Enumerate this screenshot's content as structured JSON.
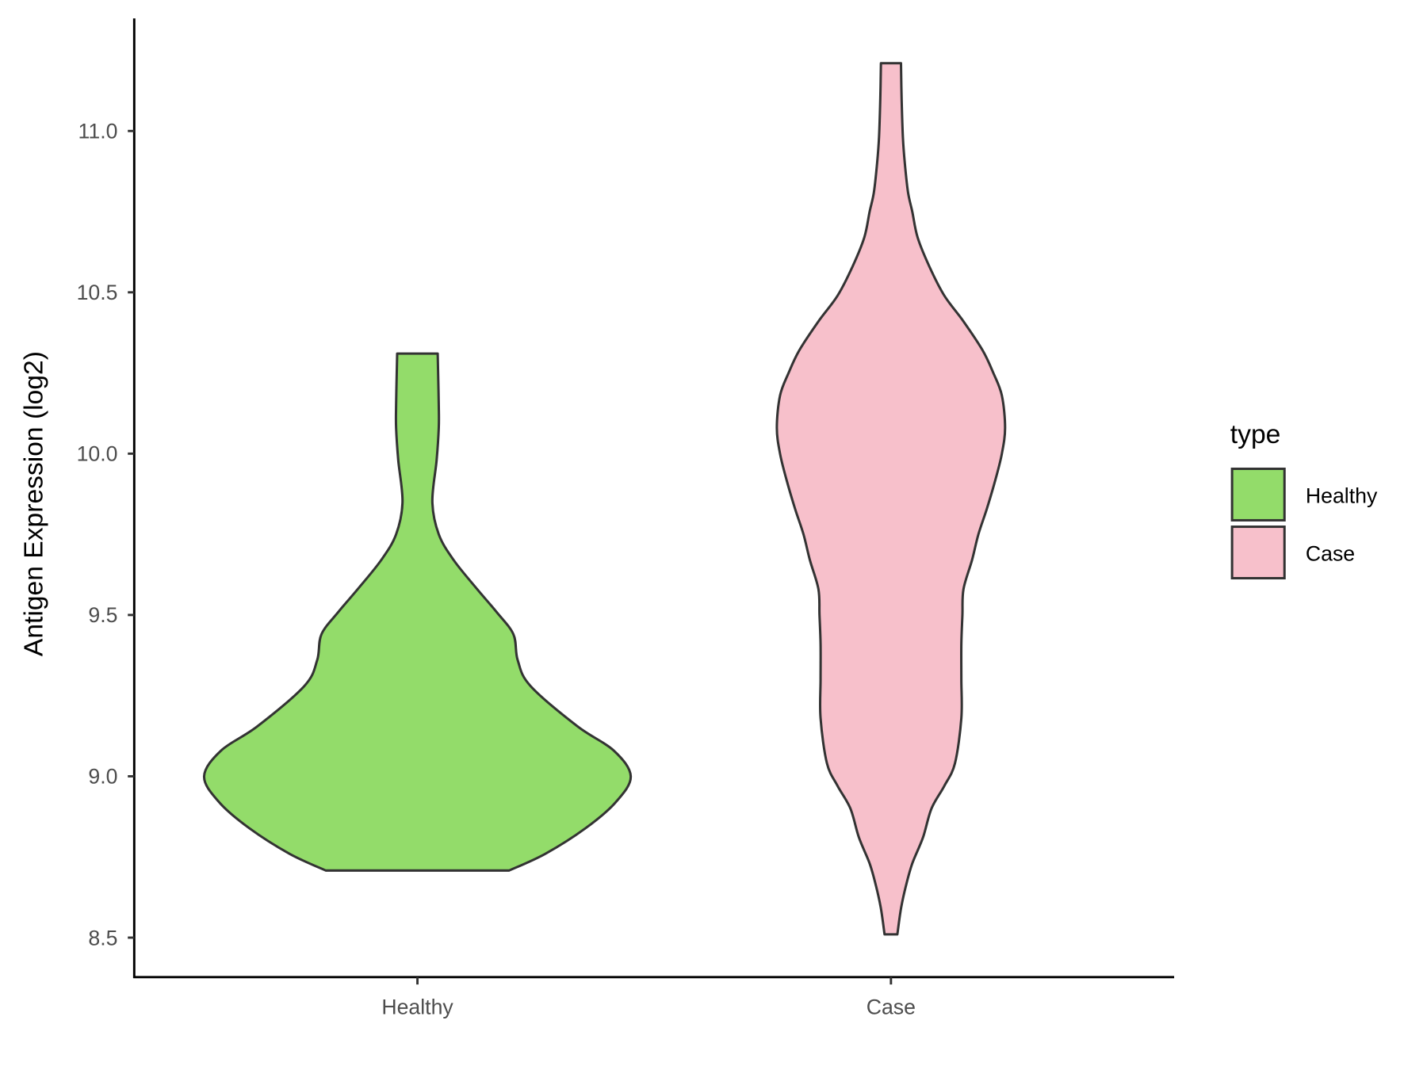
{
  "chart_data": {
    "type": "violin",
    "title": "",
    "xlabel": "",
    "ylabel": "Antigen Expression (log2)",
    "ylim": [
      8.38,
      11.35
    ],
    "yticks": [
      "8.5",
      "9.0",
      "9.5",
      "10.0",
      "10.5",
      "11.0"
    ],
    "ytick_values": [
      8.5,
      9.0,
      9.5,
      10.0,
      10.5,
      11.0
    ],
    "categories": [
      "Healthy",
      "Case"
    ],
    "grid": false,
    "legend": {
      "title": "type",
      "placement": "right",
      "entries": [
        "Healthy",
        "Case"
      ]
    },
    "series": [
      {
        "name": "Healthy",
        "color": "#93DC6A",
        "profile": [
          [
            8.708,
            0.43
          ],
          [
            8.76,
            0.6
          ],
          [
            8.84,
            0.79
          ],
          [
            8.92,
            0.93
          ],
          [
            9.0,
            1.0
          ],
          [
            9.08,
            0.92
          ],
          [
            9.155,
            0.75
          ],
          [
            9.28,
            0.53
          ],
          [
            9.36,
            0.47
          ],
          [
            9.44,
            0.45
          ],
          [
            9.51,
            0.37
          ],
          [
            9.58,
            0.28
          ],
          [
            9.67,
            0.17
          ],
          [
            9.75,
            0.1
          ],
          [
            9.85,
            0.07
          ],
          [
            9.98,
            0.09
          ],
          [
            10.08,
            0.1
          ],
          [
            10.15,
            0.1
          ],
          [
            10.25,
            0.097
          ],
          [
            10.31,
            0.095
          ]
        ]
      },
      {
        "name": "Case",
        "color": "#F7C0CB",
        "profile": [
          [
            8.51,
            0.03
          ],
          [
            8.59,
            0.047
          ],
          [
            8.66,
            0.07
          ],
          [
            8.73,
            0.1
          ],
          [
            8.81,
            0.15
          ],
          [
            8.9,
            0.19
          ],
          [
            8.97,
            0.25
          ],
          [
            9.04,
            0.3
          ],
          [
            9.18,
            0.33
          ],
          [
            9.3,
            0.33
          ],
          [
            9.41,
            0.33
          ],
          [
            9.5,
            0.335
          ],
          [
            9.58,
            0.34
          ],
          [
            9.67,
            0.38
          ],
          [
            9.75,
            0.41
          ],
          [
            9.83,
            0.45
          ],
          [
            9.92,
            0.49
          ],
          [
            10.0,
            0.52
          ],
          [
            10.08,
            0.535
          ],
          [
            10.18,
            0.52
          ],
          [
            10.25,
            0.48
          ],
          [
            10.32,
            0.43
          ],
          [
            10.41,
            0.34
          ],
          [
            10.49,
            0.25
          ],
          [
            10.58,
            0.18
          ],
          [
            10.67,
            0.125
          ],
          [
            10.75,
            0.1
          ],
          [
            10.81,
            0.08
          ],
          [
            10.9,
            0.065
          ],
          [
            10.98,
            0.056
          ],
          [
            11.1,
            0.05
          ],
          [
            11.21,
            0.047
          ]
        ]
      }
    ]
  }
}
